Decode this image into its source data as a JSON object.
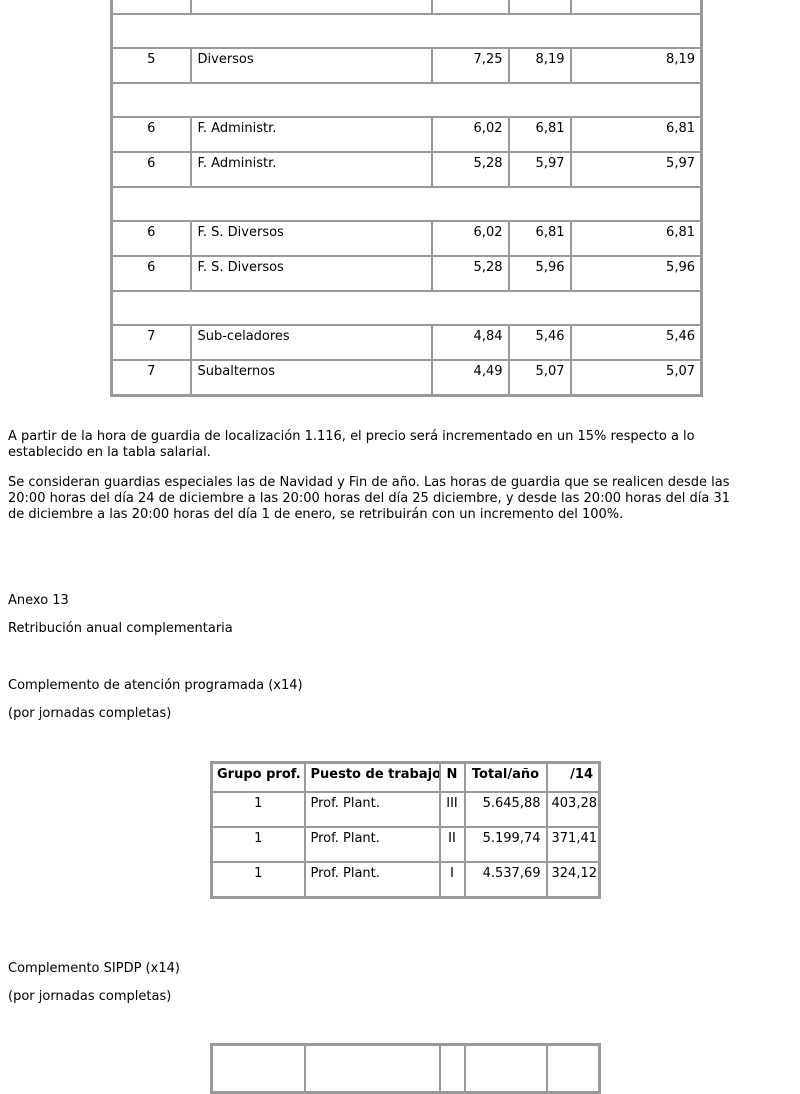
{
  "document": {
    "background": "#ffffff",
    "text_color": "#000000",
    "table_border_color": "#999999"
  },
  "guardias_table": {
    "rows": [
      {
        "type": "partial",
        "cells": [
          "",
          "",
          "",
          "",
          ""
        ]
      },
      {
        "type": "spacer"
      },
      {
        "type": "data",
        "cells": [
          "5",
          "Diversos",
          "7,25",
          "8,19",
          "8,19"
        ]
      },
      {
        "type": "spacer"
      },
      {
        "type": "data",
        "cells": [
          "6",
          "F. Administr.",
          "6,02",
          "6,81",
          "6,81"
        ]
      },
      {
        "type": "data",
        "cells": [
          "6",
          "F. Administr.",
          "5,28",
          "5,97",
          "5,97"
        ]
      },
      {
        "type": "spacer"
      },
      {
        "type": "data",
        "cells": [
          "6",
          "F. S. Diversos",
          "6,02",
          "6,81",
          "6,81"
        ]
      },
      {
        "type": "data",
        "cells": [
          "6",
          "F. S. Diversos",
          "5,28",
          "5,96",
          "5,96"
        ]
      },
      {
        "type": "spacer"
      },
      {
        "type": "data",
        "cells": [
          "7",
          "Sub-celadores",
          "4,84",
          "5,46",
          "5,46"
        ]
      },
      {
        "type": "data",
        "cells": [
          "7",
          "Subalternos",
          "4,49",
          "5,07",
          "5,07"
        ]
      }
    ]
  },
  "paragraphs": {
    "localizacion": {
      "lines": [
        "A partir de la hora de guardia de localización 1.116, el precio será incrementado en un 15% respecto a lo",
        "establecido en la tabla salarial."
      ]
    },
    "guardias_especiales": {
      "lines": [
        "Se consideran guardias especiales las de Navidad y Fin de año. Las horas de guardia que se realicen desde las",
        "20:00 horas del día 24 de diciembre a las 20:00 horas del día 25 diciembre, y desde las 20:00 horas del día 31",
        "de diciembre a las 20:00 horas del día 1 de enero, se retribuirán con un incremento del 100%."
      ]
    }
  },
  "anexo": {
    "title": "Anexo 13",
    "subtitle": "Retribución anual complementaria"
  },
  "atencion_programada": {
    "heading": "Complemento de atención programada (x14)",
    "subheading": "(por jornadas completas)",
    "table": {
      "headers": [
        "Grupo prof.",
        "Puesto de trabajo",
        "N",
        "Total/año",
        "/14"
      ],
      "rows": [
        [
          "1",
          "Prof. Plant.",
          "III",
          "5.645,88",
          "403,28"
        ],
        [
          "1",
          "Prof. Plant.",
          "II",
          "5.199,74",
          "371,41"
        ],
        [
          "1",
          "Prof. Plant.",
          "I",
          "4.537,69",
          "324,12"
        ]
      ]
    }
  },
  "sipdp": {
    "heading": "Complemento SIPDP (x14)",
    "subheading": "(por jornadas completas)"
  }
}
